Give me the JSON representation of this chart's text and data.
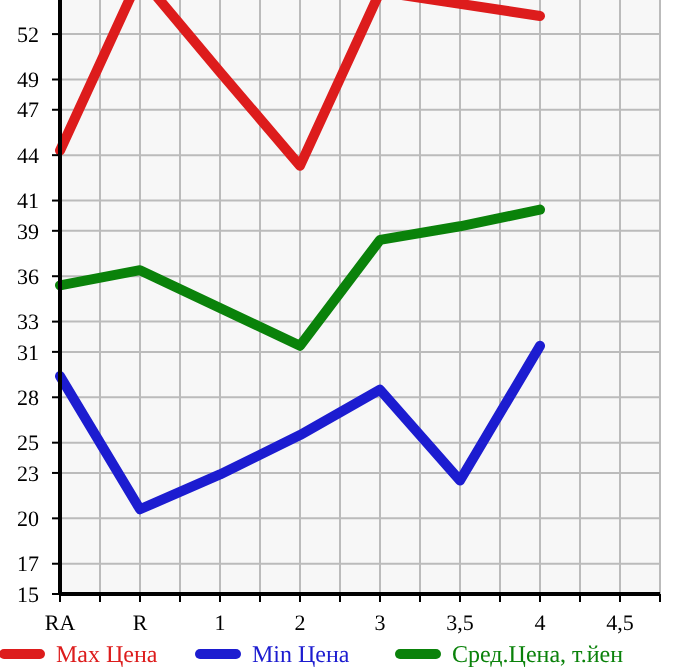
{
  "chart_data": {
    "type": "line",
    "categories": [
      "RA",
      "R",
      "1",
      "2",
      "3",
      "3,5",
      "4",
      "4,5"
    ],
    "series": [
      {
        "name": "Max Цена",
        "color": "#dd1c1c",
        "values": [
          44.3,
          55.8,
          49.5,
          43.3,
          54.8,
          54.0,
          53.2,
          null
        ]
      },
      {
        "name": "Min Цена",
        "color": "#1c1cd0",
        "values": [
          29.4,
          20.6,
          22.9,
          25.5,
          28.5,
          22.5,
          31.4,
          null
        ]
      },
      {
        "name": "Сред.Цена, т.йен",
        "color": "#0a820a",
        "values": [
          35.4,
          36.4,
          33.9,
          31.4,
          38.4,
          39.3,
          40.4,
          null
        ]
      }
    ],
    "ylim": [
      15,
      56.5
    ],
    "yticks": [
      15,
      17,
      20,
      23,
      25,
      28,
      31,
      33,
      36,
      39,
      41,
      44,
      47,
      49,
      52
    ],
    "grid": true,
    "legend": "bottom",
    "marker": "none",
    "line_style": "solid"
  }
}
